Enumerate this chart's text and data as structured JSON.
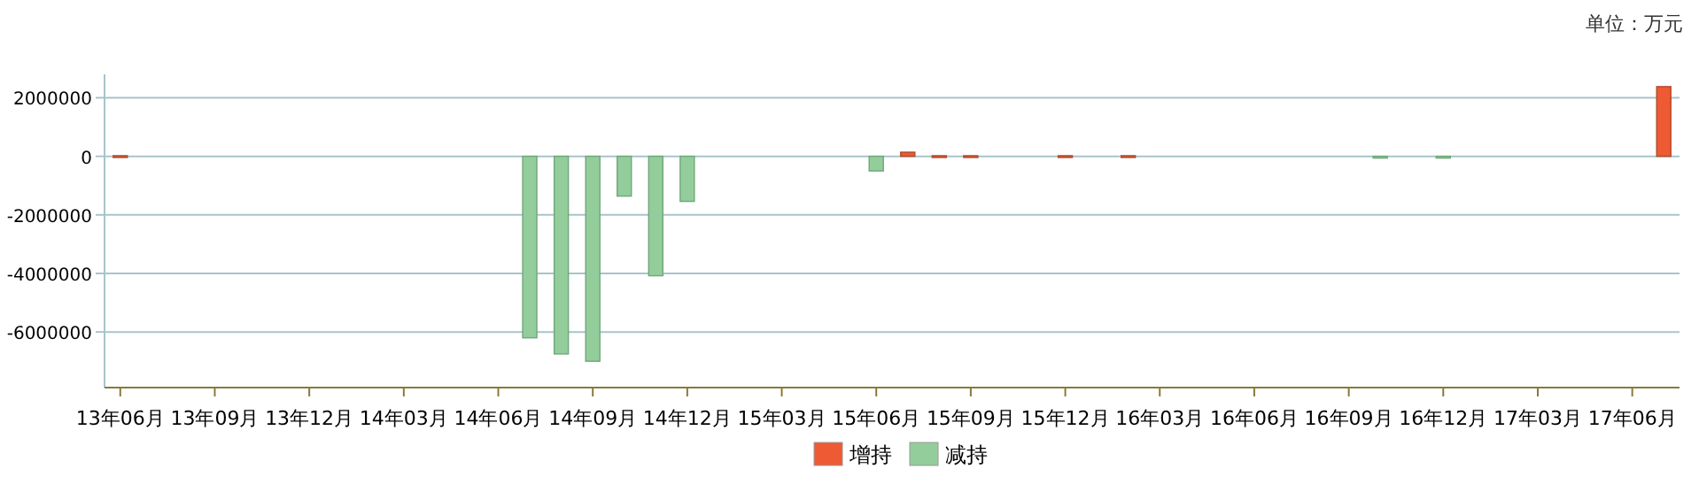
{
  "chart_data": {
    "type": "bar",
    "categories": [
      "13年06月",
      null,
      null,
      "13年09月",
      null,
      null,
      "13年12月",
      null,
      null,
      "14年03月",
      null,
      null,
      "14年06月",
      null,
      null,
      "14年09月",
      null,
      null,
      "14年12月",
      null,
      null,
      "15年03月",
      null,
      null,
      "15年06月",
      null,
      null,
      "15年09月",
      null,
      null,
      "15年12月",
      null,
      null,
      "16年03月",
      null,
      null,
      "16年06月",
      null,
      null,
      "16年09月",
      null,
      null,
      "16年12月",
      null,
      null,
      "17年03月",
      null,
      null,
      "17年06月",
      null
    ],
    "series": [
      {
        "name": "增持",
        "color": "#ee5a33",
        "values": [
          20000,
          null,
          null,
          null,
          null,
          null,
          null,
          null,
          null,
          null,
          null,
          null,
          null,
          null,
          null,
          null,
          null,
          null,
          null,
          null,
          null,
          null,
          null,
          null,
          null,
          140000,
          20000,
          20000,
          null,
          null,
          20000,
          null,
          20000,
          null,
          null,
          null,
          null,
          null,
          null,
          null,
          null,
          null,
          null,
          null,
          null,
          null,
          null,
          null,
          null,
          2380000
        ]
      },
      {
        "name": "减持",
        "color": "#93cd9b",
        "values": [
          null,
          null,
          null,
          null,
          null,
          null,
          null,
          null,
          null,
          null,
          null,
          null,
          null,
          -6200000,
          -6750000,
          -7000000,
          -1360000,
          -4080000,
          -1540000,
          null,
          null,
          null,
          null,
          null,
          -500000,
          null,
          null,
          null,
          null,
          null,
          null,
          null,
          null,
          null,
          null,
          null,
          null,
          null,
          null,
          null,
          -10000,
          null,
          -10000,
          null,
          null,
          null,
          null,
          null,
          null,
          null
        ]
      }
    ],
    "ylim": [
      -7900000,
      2800000
    ],
    "yticks": [
      -6000000,
      -4000000,
      -2000000,
      0,
      2000000
    ],
    "grid": "y",
    "legend": "bottom",
    "annotations": [
      "单位：万元"
    ]
  }
}
